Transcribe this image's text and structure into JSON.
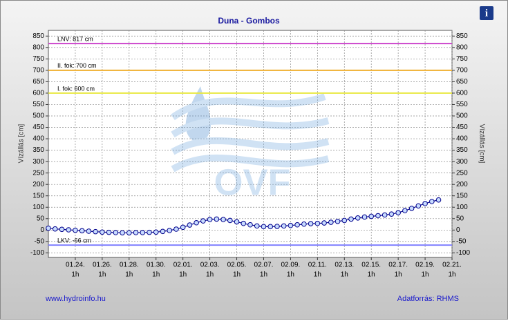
{
  "chart_data": {
    "type": "line",
    "title": "Duna - Gombos",
    "y_label": "Vízállás [cm]",
    "y2_label": "Vízállás [cm]",
    "watermark": "OVF",
    "source_left": "www.hydroinfo.hu",
    "source_right": "Adatforrás: RHMS",
    "xlim": [
      0,
      30
    ],
    "xticks": [
      {
        "value": 2,
        "label": "01.24."
      },
      {
        "value": 4,
        "label": "01.26."
      },
      {
        "value": 6,
        "label": "01.28."
      },
      {
        "value": 8,
        "label": "01.30."
      },
      {
        "value": 10,
        "label": "02.01."
      },
      {
        "value": 12,
        "label": "02.03."
      },
      {
        "value": 14,
        "label": "02.05."
      },
      {
        "value": 16,
        "label": "02.07."
      },
      {
        "value": 18,
        "label": "02.09."
      },
      {
        "value": 20,
        "label": "02.11."
      },
      {
        "value": 22,
        "label": "02.13."
      },
      {
        "value": 24,
        "label": "02.15."
      },
      {
        "value": 26,
        "label": "02.17."
      },
      {
        "value": 28,
        "label": "02.19."
      },
      {
        "value": 30,
        "label": "02.21."
      }
    ],
    "xtick_hours": [
      "1h",
      "1h",
      "1h",
      "1h",
      "1h",
      "1h",
      "1h",
      "1h",
      "1h",
      "1h",
      "1h",
      "1h",
      "1h",
      "1h",
      "1h"
    ],
    "ylim": [
      -120,
      875
    ],
    "yticks": [
      -100,
      -50,
      0,
      50,
      100,
      150,
      200,
      250,
      300,
      350,
      400,
      450,
      500,
      550,
      600,
      650,
      700,
      750,
      800,
      850
    ],
    "grid": true,
    "thresholds": [
      {
        "label": "LNV: 817 cm",
        "value": 817,
        "color": "#cc44cc"
      },
      {
        "label": "II. fok: 700 cm",
        "value": 700,
        "color": "#f0b030"
      },
      {
        "label": "I. fok: 600 cm",
        "value": 600,
        "color": "#e8e840"
      },
      {
        "label": "LKV: -66 cm",
        "value": -66,
        "color": "#8080ff"
      }
    ],
    "series": [
      {
        "color": "#00008b",
        "x": [
          0,
          0.5,
          1,
          1.5,
          2,
          2.5,
          3,
          3.5,
          4,
          4.5,
          5,
          5.5,
          6,
          6.5,
          7,
          7.5,
          8,
          8.5,
          9,
          9.5,
          10,
          10.5,
          11,
          11.5,
          12,
          12.5,
          13,
          13.5,
          14,
          14.5,
          15,
          15.5,
          16,
          16.5,
          17,
          17.5,
          18,
          18.5,
          19,
          19.5,
          20,
          20.5,
          21,
          21.5,
          22,
          22.5,
          23,
          23.5,
          24,
          24.5,
          25,
          25.5,
          26,
          26.5,
          27,
          27.5,
          28,
          28.5,
          29
        ],
        "values": [
          8,
          5,
          3,
          1,
          -1,
          -3,
          -5,
          -7,
          -9,
          -10,
          -11,
          -12,
          -12,
          -11,
          -11,
          -10,
          -9,
          -6,
          -2,
          4,
          12,
          22,
          32,
          40,
          46,
          48,
          46,
          42,
          36,
          29,
          23,
          18,
          15,
          15,
          16,
          18,
          20,
          23,
          26,
          28,
          29,
          31,
          34,
          38,
          42,
          48,
          53,
          57,
          60,
          63,
          66,
          70,
          76,
          85,
          95,
          106,
          116,
          125,
          132
        ]
      }
    ]
  }
}
